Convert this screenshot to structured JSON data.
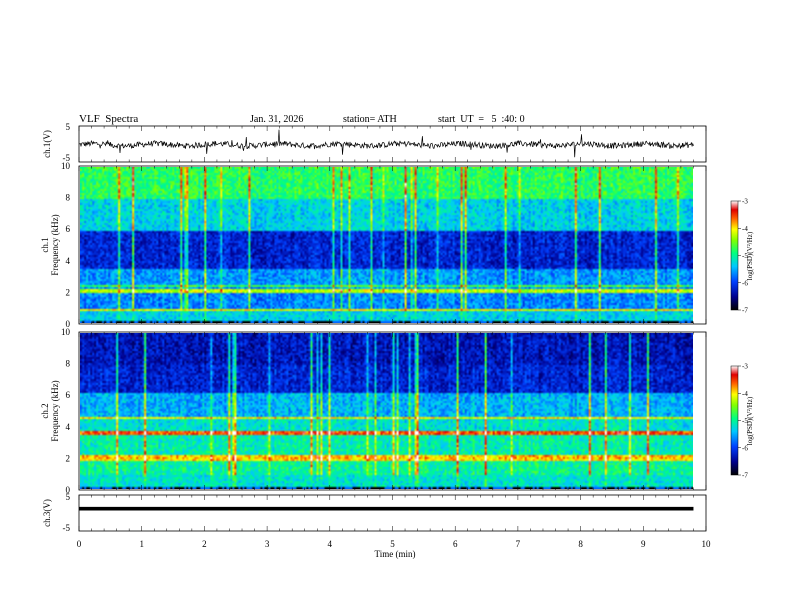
{
  "header": {
    "title": "VLF  Spectra",
    "date": "Jan. 31, 2026",
    "station": "station= ATH",
    "start": "start  UT  =   5  :40: 0"
  },
  "chart_data": [
    {
      "type": "line",
      "name": "ch1-waveform",
      "ylabel": "ch.1(V)",
      "ylim": [
        -5,
        5
      ],
      "yticks": [
        "5",
        "-5"
      ],
      "xlim": [
        0,
        10
      ],
      "description_level": -0.2,
      "color": "#000000"
    },
    {
      "type": "heatmap",
      "name": "ch1-spectrogram",
      "ylabel": "ch.1\nFrequency (kHz)",
      "ylabel_top": "ch.1",
      "ylabel_bottom": "Frequency (kHz)",
      "ylim": [
        0,
        10
      ],
      "yticks": [
        "0",
        "2",
        "4",
        "6",
        "8",
        "10"
      ],
      "xlim": [
        0,
        9.8
      ],
      "colorbar": {
        "label": "log(PSD)(V²/Hz)",
        "range": [
          -7,
          -3
        ],
        "ticks": [
          "-3",
          "-4",
          "-5",
          "-6",
          "-7"
        ]
      }
    },
    {
      "type": "heatmap",
      "name": "ch2-spectrogram",
      "ylabel_top": "ch.2",
      "ylabel_bottom": "Frequency (kHz)",
      "ylim": [
        0,
        10
      ],
      "yticks": [
        "0",
        "2",
        "4",
        "6",
        "8",
        "10"
      ],
      "xlim": [
        0,
        9.8
      ],
      "colorbar": {
        "label": "log(PSD)(V²/Hz)",
        "range": [
          -7,
          -3
        ],
        "ticks": [
          "-3",
          "-4",
          "-5",
          "-6",
          "-7"
        ]
      }
    },
    {
      "type": "line",
      "name": "ch3-waveform",
      "ylabel": "ch.3(V)",
      "ylim": [
        -5,
        5
      ],
      "yticks": [
        "5",
        "-5"
      ],
      "xlim": [
        0,
        10
      ],
      "level": 1.2,
      "xlabel": "Time  (min)",
      "xticks": [
        "0",
        "1",
        "2",
        "3",
        "4",
        "5",
        "6",
        "7",
        "8",
        "9",
        "10"
      ]
    }
  ]
}
